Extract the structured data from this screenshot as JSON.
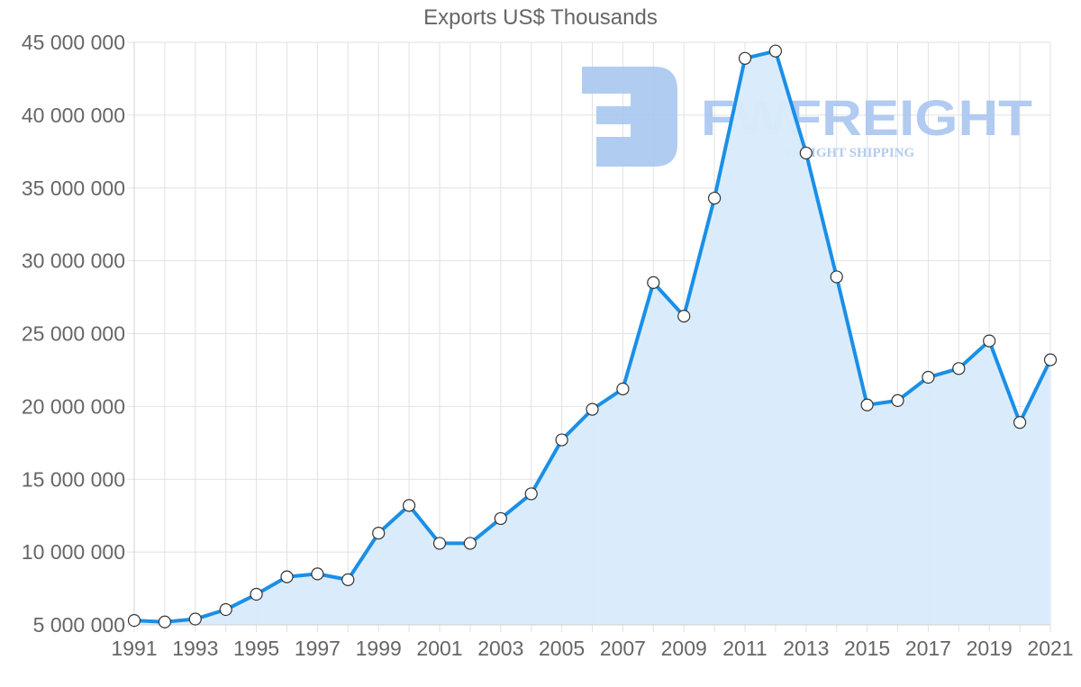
{
  "chart_data": {
    "type": "area",
    "title": "Exports US$ Thousands",
    "xlabel": "",
    "ylabel": "",
    "ylim": [
      5000000,
      45000000
    ],
    "xlim": [
      1991,
      2021
    ],
    "grid": true,
    "legend": null,
    "y_ticks": [
      "5 000 000",
      "10 000 000",
      "15 000 000",
      "20 000 000",
      "25 000 000",
      "30 000 000",
      "35 000 000",
      "40 000 000",
      "45 000 000"
    ],
    "x_ticks": [
      "1991",
      "1993",
      "1995",
      "1997",
      "1999",
      "2001",
      "2003",
      "2005",
      "2007",
      "2009",
      "2011",
      "2013",
      "2015",
      "2017",
      "2019",
      "2021"
    ],
    "categories": [
      1991,
      1992,
      1993,
      1994,
      1995,
      1996,
      1997,
      1998,
      1999,
      2000,
      2001,
      2002,
      2003,
      2004,
      2005,
      2006,
      2007,
      2008,
      2009,
      2010,
      2011,
      2012,
      2013,
      2014,
      2015,
      2016,
      2017,
      2018,
      2019,
      2020,
      2021
    ],
    "series": [
      {
        "name": "Exports US$ Thousands",
        "color": "#1a8fe8",
        "fill": "#d8ebfb",
        "values": [
          5300000,
          5200000,
          5400000,
          6050000,
          7100000,
          8300000,
          8500000,
          8100000,
          11300000,
          13200000,
          10600000,
          10600000,
          12300000,
          14000000,
          17700000,
          19800000,
          21200000,
          28500000,
          26200000,
          34300000,
          43900000,
          44400000,
          37400000,
          28900000,
          20100000,
          20400000,
          22000000,
          22600000,
          24500000,
          18900000,
          23200000
        ]
      }
    ]
  },
  "watermark": {
    "brand": "FWFREIGHT",
    "tagline": "FREIGHT SHIPPING",
    "color": "#a9c6f0"
  }
}
